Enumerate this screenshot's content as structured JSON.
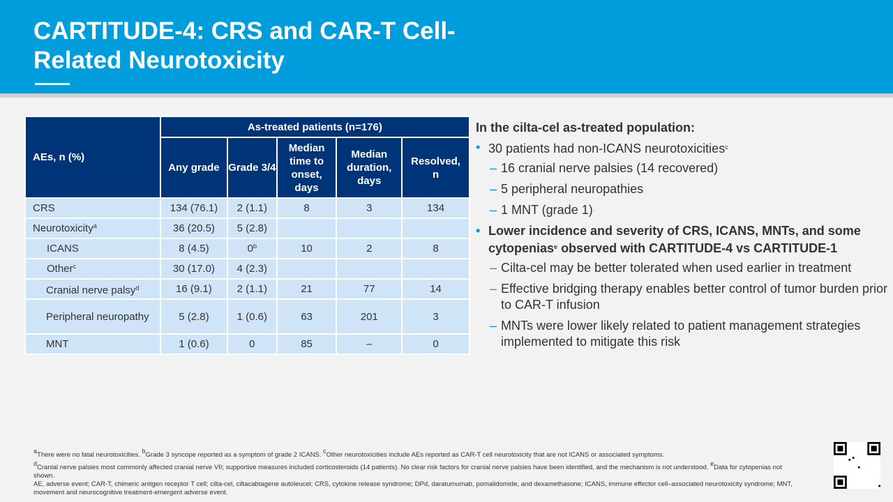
{
  "title": "CARTITUDE-4: CRS and CAR-T Cell-Related Neurotoxicity",
  "table": {
    "row_header": "AEs, n (%)",
    "group_header": "As-treated patients (n=176)",
    "columns": [
      "Any grade",
      "Grade 3/4",
      "Median time to onset, days",
      "Median duration, days",
      "Resolved, n"
    ],
    "rows": [
      {
        "label": "CRS",
        "sup": "",
        "values": [
          "134 (76.1)",
          "2 (1.1)",
          "8",
          "3",
          "134"
        ]
      },
      {
        "label": "Neurotoxicity",
        "sup": "a",
        "values": [
          "36 (20.5)",
          "5 (2.8)",
          "",
          "",
          ""
        ]
      },
      {
        "label": "ICANS",
        "sup": "",
        "values": [
          "8 (4.5)",
          "0",
          "10",
          "2",
          "8"
        ],
        "sup2": "b"
      },
      {
        "label": "Other",
        "sup": "c",
        "values": [
          "30 (17.0)",
          "4 (2.3)",
          "",
          "",
          ""
        ]
      },
      {
        "label": "Cranial nerve palsy",
        "sup": "d",
        "values": [
          "16 (9.1)",
          "2 (1.1)",
          "21",
          "77",
          "14"
        ]
      },
      {
        "label": "Peripheral neuropathy",
        "sup": "",
        "values": [
          "5 (2.8)",
          "1 (0.6)",
          "63",
          "201",
          "3"
        ]
      },
      {
        "label": "MNT",
        "sup": "",
        "values": [
          "1 (0.6)",
          "0",
          "85",
          "–",
          "0"
        ]
      }
    ]
  },
  "right": {
    "heading": "In the cilta-cel as-treated population:",
    "b1": "30 patients had non-ICANS neurotoxicities",
    "b1_sup": "c",
    "b1_subs": [
      "16 cranial nerve palsies (14 recovered)",
      "5 peripheral neuropathies",
      "1 MNT (grade 1)"
    ],
    "b2a": "Lower incidence and severity of CRS, ICANS, MNTs, and some cytopenias",
    "b2_sup": "e",
    "b2b": " observed with CARTITUDE-4 vs CARTITUDE-1",
    "b2_subs": [
      "Cilta-cel may be better tolerated when used earlier in treatment",
      "Effective bridging therapy enables better control of tumor burden prior to CAR-T infusion",
      "MNTs were lower likely related to patient management strategies implemented to mitigate this risk"
    ]
  },
  "footnotes": [
    {
      "sup": "a",
      "text": "There were no fatal neurotoxicities. "
    },
    {
      "sup": "b",
      "text": "Grade 3 syncope reported as a symptom of grade 2 ICANS. "
    },
    {
      "sup": "c",
      "text": "Other neurotoxicities include AEs reported as CAR-T cell neurotoxicity that are not ICANS or associated symptoms."
    },
    {
      "sup": "d",
      "text": "Cranial nerve palsies most commonly affected cranial nerve VII; supportive measures included corticosteroids (14 patients). No clear risk factors for cranial nerve palsies have been identified, and the mechanism is not understood. "
    },
    {
      "sup": "e",
      "text": "Data for cytopenias not shown."
    }
  ],
  "abbreviations": "AE, adverse event; CAR-T, chimeric antigen receptor T cell; cilta-cel, ciltacabtagene autoleucel; CRS, cytokine release syndrome; DPd, daratumumab, pomalidomide, and dexamethasone; ICANS, immune effector cell–associated neurotoxicity syndrome; MNT, movement and neurocognitive treatment-emergent adverse event."
}
